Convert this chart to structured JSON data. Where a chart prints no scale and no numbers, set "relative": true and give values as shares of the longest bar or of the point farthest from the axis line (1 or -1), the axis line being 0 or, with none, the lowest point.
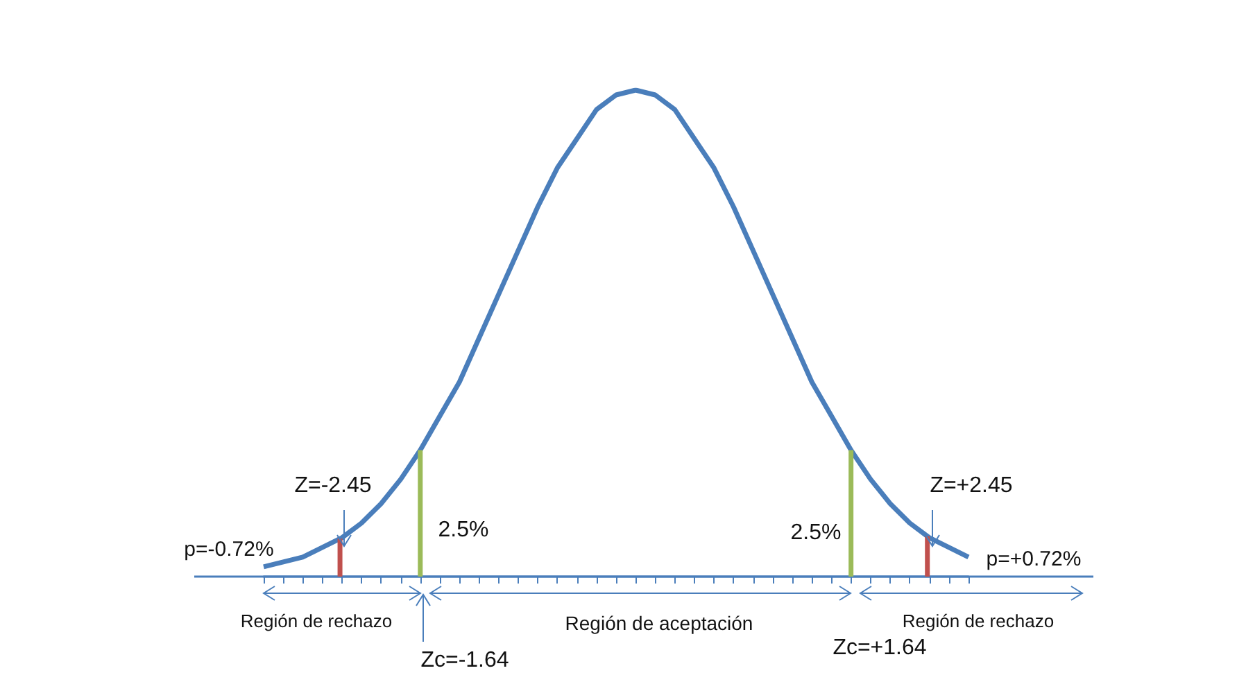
{
  "chart_data": {
    "type": "line",
    "relative": true,
    "grid": false,
    "marker": "none",
    "line_style": "solid",
    "categories": [
      null,
      null,
      null,
      null,
      null,
      null,
      null,
      null,
      null,
      null,
      null,
      null,
      null,
      null,
      null,
      null,
      null,
      null,
      null,
      null,
      null,
      null,
      null,
      null,
      null,
      null,
      null,
      null,
      null,
      null,
      null,
      null,
      null,
      null,
      null,
      null,
      null
    ],
    "series": [
      {
        "color": "#4a7ebb",
        "values": [
          0.02,
          0.03,
          0.04,
          0.06,
          0.08,
          0.11,
          0.15,
          0.2,
          0.26,
          0.33,
          0.4,
          0.49,
          0.58,
          0.67,
          0.76,
          0.84,
          0.9,
          0.96,
          0.99,
          1,
          0.99,
          0.96,
          0.9,
          0.84,
          0.76,
          0.67,
          0.58,
          0.49,
          0.4,
          0.33,
          0.26,
          0.2,
          0.15,
          0.11,
          0.08,
          0.06,
          0.04
        ]
      }
    ],
    "annotations": [
      "Z=-2.45",
      "Zc=-1.64",
      "2.5%",
      "p=-0.72%",
      "Región de rechazo",
      "Región de aceptación",
      "Zc=+1.64",
      "2.5%",
      "Z=+2.45",
      "p=+0.72%",
      "Región de rechazo"
    ]
  }
}
